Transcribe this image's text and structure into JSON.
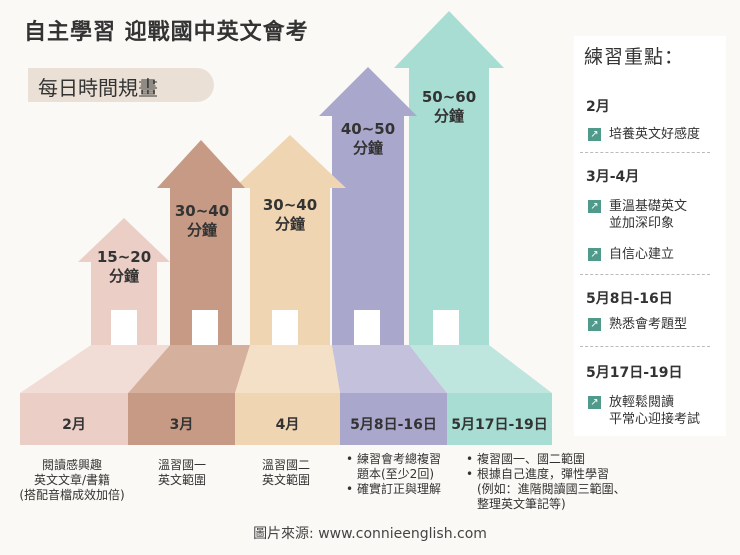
{
  "title": "自主學習 迎戰國中英文會考",
  "subtitle": "每日時間規畫",
  "colors": {
    "feb": "#ebcfc6",
    "mar": "#c69a84",
    "apr": "#f0d5b2",
    "may8": "#aaa7cd",
    "may17": "#a7ddd3",
    "accent_icon": "#4f9a8a"
  },
  "stages": [
    {
      "time": [
        "15~20",
        "分鐘"
      ],
      "month": "2月",
      "desc": [
        "閱讀感興趣",
        "英文文章/書籍",
        "(搭配音檔成效加倍)"
      ]
    },
    {
      "time": [
        "30~40",
        "分鐘"
      ],
      "month": "3月",
      "desc": [
        "溫習國一",
        "英文範圍"
      ]
    },
    {
      "time": [
        "30~40",
        "分鐘"
      ],
      "month": "4月",
      "desc": [
        "溫習國二",
        "英文範圍"
      ]
    },
    {
      "time": [
        "40~50",
        "分鐘"
      ],
      "month": "5月8日-16日",
      "bullets": [
        [
          "練習會考總複習",
          "題本(至少2回)"
        ],
        [
          "確實訂正與理解"
        ]
      ]
    },
    {
      "time": [
        "50~60",
        "分鐘"
      ],
      "month": "5月17日-19日",
      "bullets": [
        [
          "複習國一、國二範圍"
        ],
        [
          "根據自己進度，彈性學習",
          "(例如：進階閱讀國三範圍、",
          "整理英文筆記等)"
        ]
      ]
    }
  ],
  "panel": {
    "title": "練習重點：",
    "sections": [
      {
        "head": "2月",
        "items": [
          [
            "培養英文好感度"
          ]
        ]
      },
      {
        "head": "3月-4月",
        "items": [
          [
            "重溫基礎英文",
            "並加深印象"
          ],
          [
            "自信心建立"
          ]
        ]
      },
      {
        "head": "5月8日-16日",
        "items": [
          [
            "熟悉會考題型"
          ]
        ]
      },
      {
        "head": "5月17日-19日",
        "items": [
          [
            "放輕鬆閱讀",
            "平常心迎接考試"
          ]
        ]
      }
    ]
  },
  "credit": "圖片來源: www.connieenglish.com"
}
